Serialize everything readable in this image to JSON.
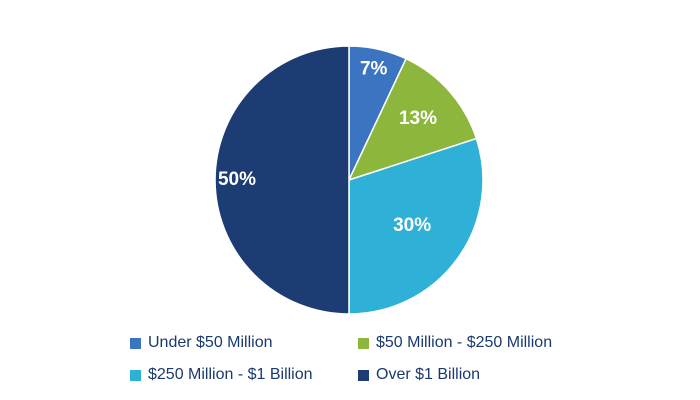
{
  "chart_data": {
    "type": "pie",
    "title": "",
    "start_angle_deg": 0,
    "direction": "clockwise",
    "legend_position": "bottom",
    "slices": [
      {
        "label": "Under $50 Million",
        "value": 7,
        "display": "7%",
        "color": "#3b74c0"
      },
      {
        "label": "$50 Million - $250 Million",
        "value": 13,
        "display": "13%",
        "color": "#8db63c"
      },
      {
        "label": "$250 Million - $1 Billion",
        "value": 30,
        "display": "30%",
        "color": "#2fb0d6"
      },
      {
        "label": "Over $1 Billion",
        "value": 50,
        "display": "50%",
        "color": "#1d3c73"
      }
    ]
  }
}
